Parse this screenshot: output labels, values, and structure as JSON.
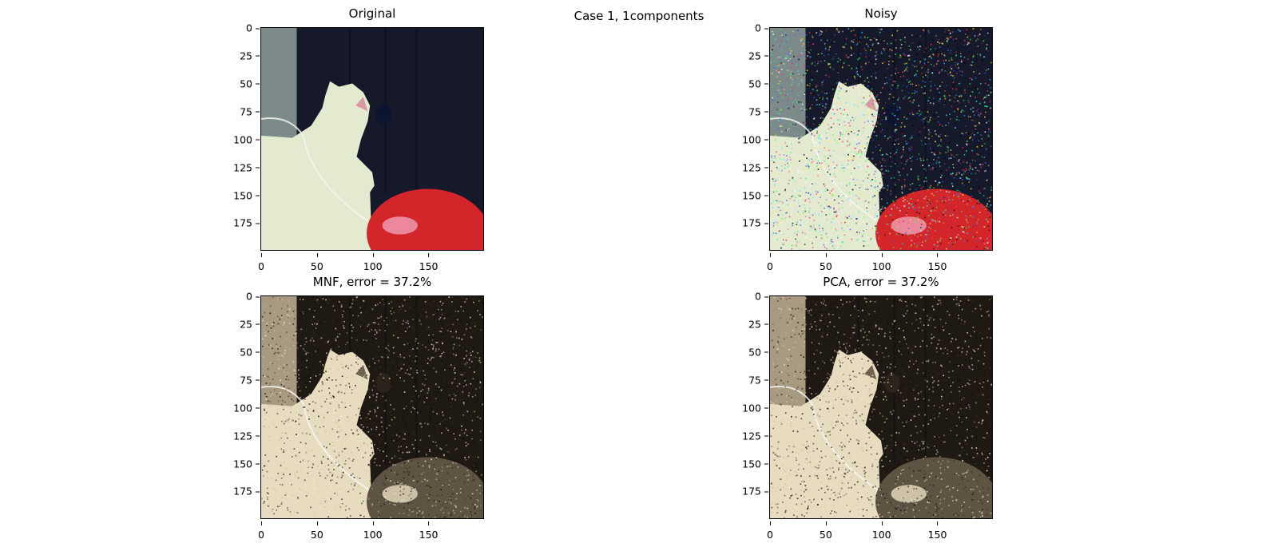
{
  "figure": {
    "suptitle": "Case 1, 1components"
  },
  "chart_data": [
    {
      "type": "image",
      "title": "Original",
      "xlim": [
        0,
        199
      ],
      "ylim": [
        199,
        0
      ],
      "xticks": [
        "0",
        "50",
        "100",
        "150"
      ],
      "yticks": [
        "0",
        "25",
        "50",
        "75",
        "100",
        "125",
        "150",
        "175"
      ],
      "colormap": "rgb",
      "noise": 0,
      "palette": {
        "bg": "#15192a",
        "wall": "#7c8a8a",
        "cat": "#e4ead0",
        "balloon": "#d2262b",
        "highlight": "#f0a0b8"
      }
    },
    {
      "type": "image",
      "title": "Noisy",
      "xlim": [
        0,
        199
      ],
      "ylim": [
        199,
        0
      ],
      "xticks": [
        "0",
        "50",
        "100",
        "150"
      ],
      "yticks": [
        "0",
        "25",
        "50",
        "75",
        "100",
        "125",
        "150",
        "175"
      ],
      "colormap": "rgb",
      "noise": 0.9,
      "palette": {
        "bg": "#15192a",
        "wall": "#7c8a8a",
        "cat": "#e4ead0",
        "balloon": "#d2262b",
        "highlight": "#f0a0b8"
      }
    },
    {
      "type": "image",
      "title": "MNF, error = 37.2%",
      "xlim": [
        0,
        199
      ],
      "ylim": [
        199,
        0
      ],
      "xticks": [
        "0",
        "50",
        "100",
        "150"
      ],
      "yticks": [
        "0",
        "25",
        "50",
        "75",
        "100",
        "125",
        "150",
        "175"
      ],
      "colormap": "sepia",
      "noise": 0.75,
      "palette": {
        "bg": "#1e1912",
        "wall": "#a89a80",
        "cat": "#e8dcc0",
        "balloon": "#5e5444",
        "highlight": "#e8dcc0"
      }
    },
    {
      "type": "image",
      "title": "PCA, error = 37.2%",
      "xlim": [
        0,
        199
      ],
      "ylim": [
        199,
        0
      ],
      "xticks": [
        "0",
        "50",
        "100",
        "150"
      ],
      "yticks": [
        "0",
        "25",
        "50",
        "75",
        "100",
        "125",
        "150",
        "175"
      ],
      "colormap": "sepia",
      "noise": 0.75,
      "palette": {
        "bg": "#1e1912",
        "wall": "#a89a80",
        "cat": "#e8dcc0",
        "balloon": "#5e5444",
        "highlight": "#e8dcc0"
      }
    }
  ]
}
